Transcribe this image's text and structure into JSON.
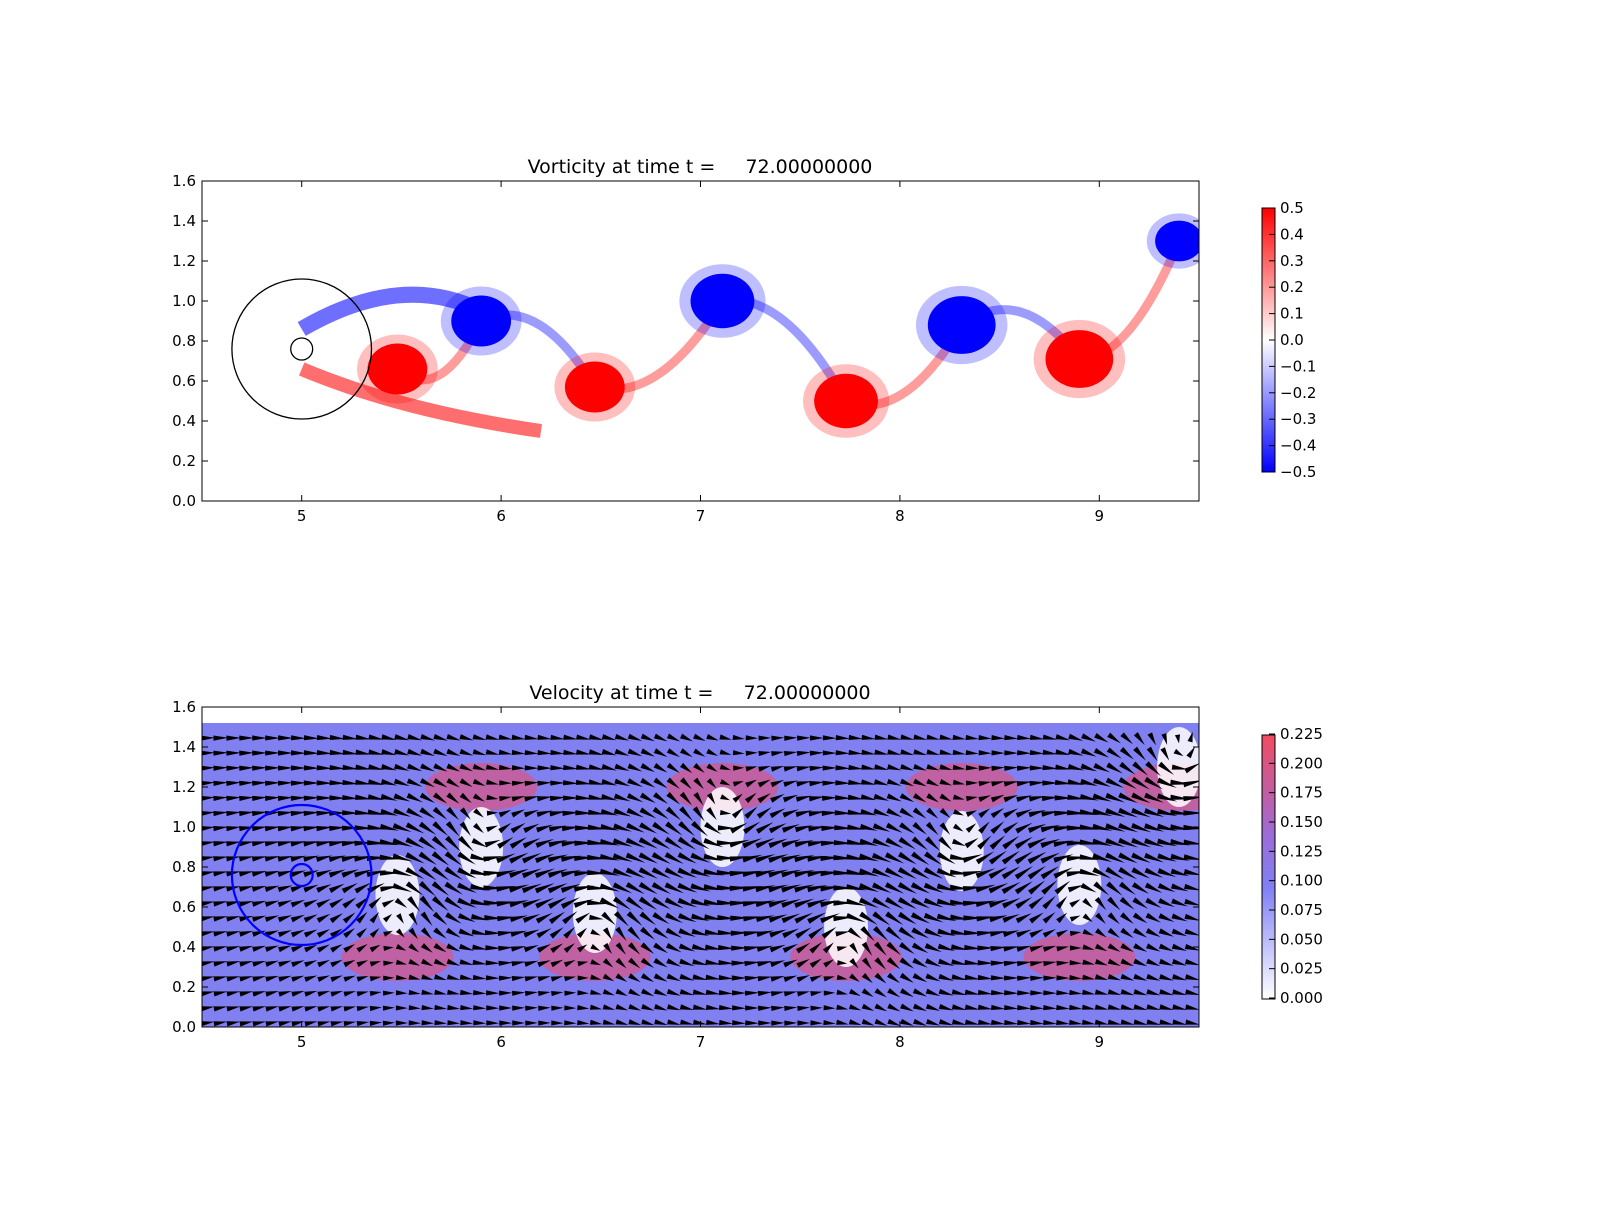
{
  "chart_data": [
    {
      "type": "heatmap",
      "title": "Vorticity at time t =     72.00000000",
      "xlim": [
        4.5,
        9.5
      ],
      "ylim": [
        0.0,
        1.6
      ],
      "x_ticks": [
        "5",
        "6",
        "7",
        "8",
        "9"
      ],
      "y_ticks": [
        "0.0",
        "0.2",
        "0.4",
        "0.6",
        "0.8",
        "1.0",
        "1.2",
        "1.4",
        "1.6"
      ],
      "colormap": "bwr",
      "clim": [
        -0.5,
        0.5
      ],
      "colorbar_ticks": [
        "0.5",
        "0.4",
        "0.3",
        "0.2",
        "0.1",
        "0.0",
        "−0.1",
        "−0.2",
        "−0.3",
        "−0.4",
        "−0.5"
      ],
      "vortices": [
        {
          "x": 5.48,
          "y": 0.66,
          "sign": 1,
          "r": 0.15
        },
        {
          "x": 5.9,
          "y": 0.9,
          "sign": -1,
          "r": 0.15
        },
        {
          "x": 6.47,
          "y": 0.57,
          "sign": 1,
          "r": 0.15
        },
        {
          "x": 7.11,
          "y": 1.0,
          "sign": -1,
          "r": 0.16
        },
        {
          "x": 7.73,
          "y": 0.5,
          "sign": 1,
          "r": 0.16
        },
        {
          "x": 8.31,
          "y": 0.88,
          "sign": -1,
          "r": 0.17
        },
        {
          "x": 8.9,
          "y": 0.71,
          "sign": 1,
          "r": 0.17
        },
        {
          "x": 9.4,
          "y": 1.3,
          "sign": -1,
          "r": 0.12
        }
      ],
      "circles": [
        {
          "cx": 5.0,
          "cy": 0.76,
          "r": 0.35,
          "color": "#000000"
        },
        {
          "cx": 5.0,
          "cy": 0.76,
          "r": 0.055,
          "color": "#000000"
        }
      ]
    },
    {
      "type": "heatmap",
      "title": "Velocity at time t =     72.00000000",
      "xlim": [
        4.5,
        9.5
      ],
      "ylim": [
        0.0,
        1.6
      ],
      "x_ticks": [
        "5",
        "6",
        "7",
        "8",
        "9"
      ],
      "y_ticks": [
        "0.0",
        "0.2",
        "0.4",
        "0.6",
        "0.8",
        "1.0",
        "1.2",
        "1.4",
        "1.6"
      ],
      "colormap": "white-blue-red",
      "clim": [
        0.0,
        0.225
      ],
      "colorbar_ticks": [
        "0.225",
        "0.200",
        "0.175",
        "0.150",
        "0.125",
        "0.100",
        "0.075",
        "0.050",
        "0.025",
        "0.000"
      ],
      "field_ylim": [
        0.0,
        1.52
      ],
      "quiver": true,
      "circles": [
        {
          "cx": 5.0,
          "cy": 0.76,
          "r": 0.35,
          "color": "#0000ff"
        },
        {
          "cx": 5.0,
          "cy": 0.76,
          "r": 0.055,
          "color": "#0000ff"
        }
      ]
    }
  ]
}
